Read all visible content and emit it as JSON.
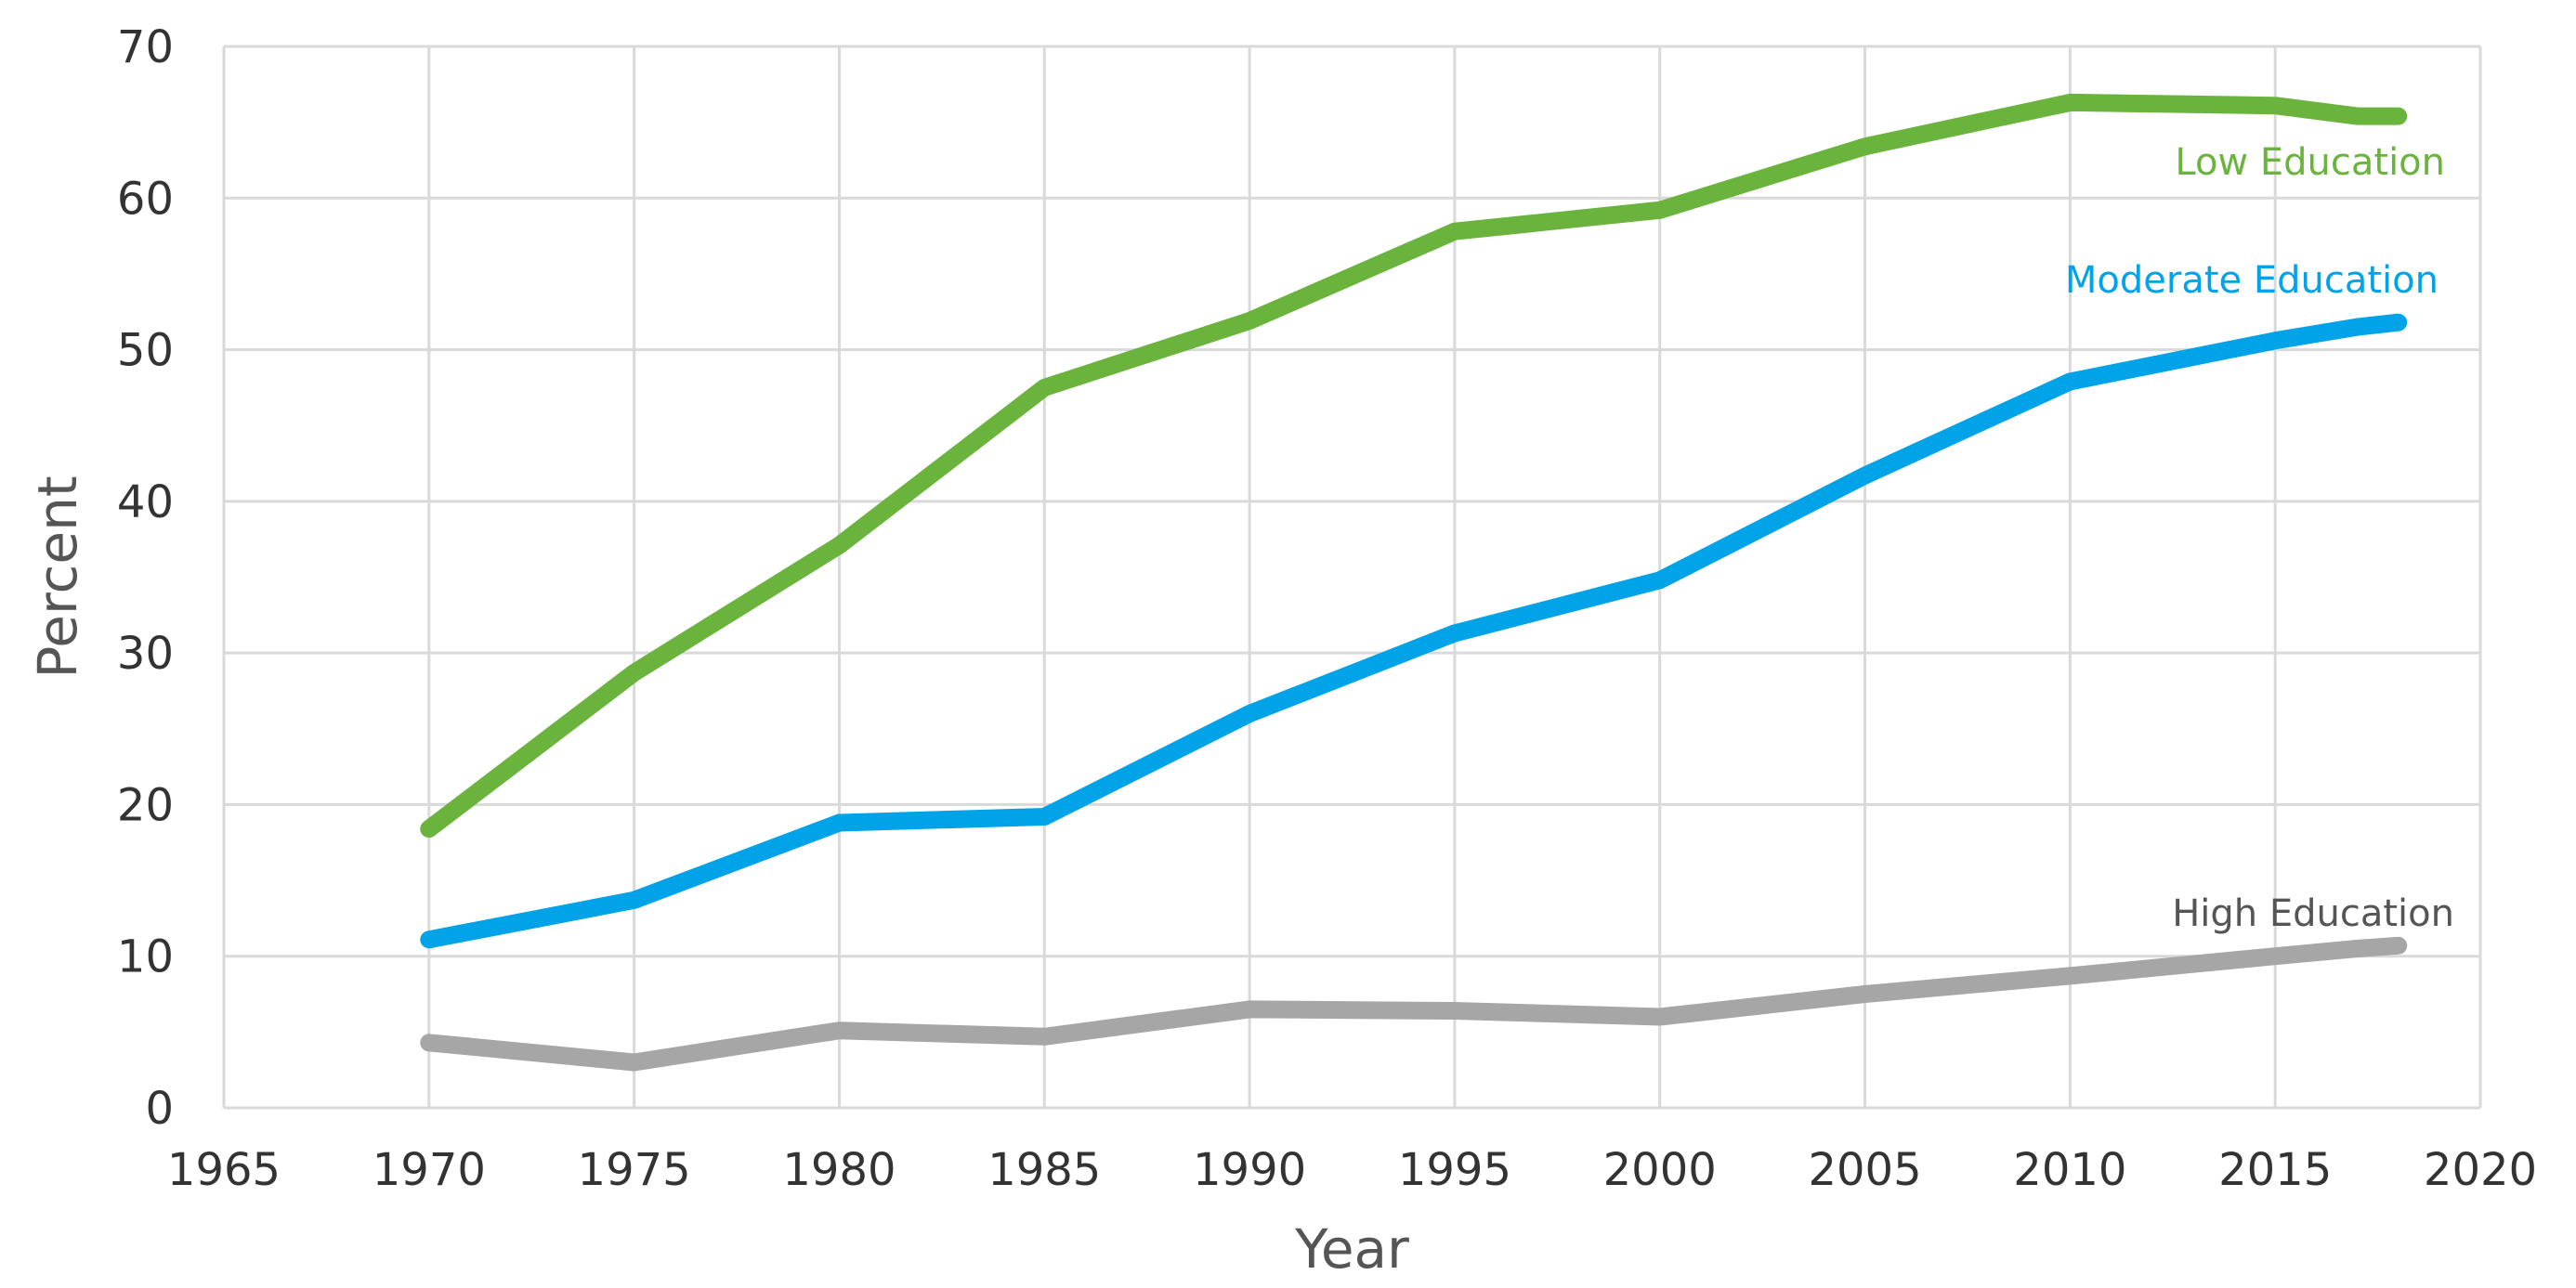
{
  "chart_data": {
    "type": "line",
    "title": "",
    "xlabel": "Year",
    "ylabel": "Percent",
    "xlim": [
      1965,
      2020
    ],
    "ylim": [
      0,
      70
    ],
    "x_ticks": [
      1965,
      1970,
      1975,
      1980,
      1985,
      1990,
      1995,
      2000,
      2005,
      2010,
      2015,
      2020
    ],
    "y_ticks": [
      0,
      10,
      20,
      30,
      40,
      50,
      60,
      70
    ],
    "grid": true,
    "legend": "none",
    "series": [
      {
        "name": "Low Education",
        "color": "#6ab43e",
        "x": [
          1970,
          1975,
          1980,
          1985,
          1990,
          1995,
          2000,
          2005,
          2010,
          2015,
          2017,
          2018
        ],
        "values": [
          18.4,
          28.7,
          37.1,
          47.5,
          51.9,
          57.8,
          59.2,
          63.4,
          66.3,
          66.1,
          65.4,
          65.4
        ]
      },
      {
        "name": "Moderate Education",
        "color": "#00a3e8",
        "x": [
          1970,
          1975,
          1980,
          1985,
          1990,
          1995,
          2000,
          2005,
          2010,
          2015,
          2017,
          2018
        ],
        "values": [
          11.1,
          13.7,
          18.8,
          19.2,
          26.0,
          31.3,
          34.8,
          41.7,
          47.9,
          50.6,
          51.5,
          51.8
        ]
      },
      {
        "name": "High Education",
        "color": "#a6a6a6",
        "x": [
          1970,
          1975,
          1980,
          1985,
          1990,
          1995,
          2000,
          2005,
          2010,
          2015,
          2017,
          2018
        ],
        "values": [
          4.3,
          3.0,
          5.1,
          4.7,
          6.5,
          6.4,
          6.0,
          7.5,
          8.7,
          10.0,
          10.5,
          10.7
        ]
      }
    ]
  }
}
